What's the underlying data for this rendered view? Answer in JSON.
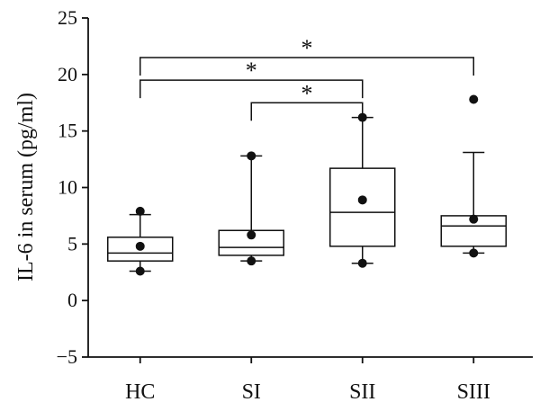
{
  "chart_data": {
    "type": "box",
    "ylabel": "IL-6 in serum (pg/ml)",
    "ylim": [
      -5,
      25
    ],
    "yticks": [
      -5,
      0,
      5,
      10,
      15,
      20,
      25
    ],
    "categories": [
      "HC",
      "SI",
      "SII",
      "SIII"
    ],
    "boxes": [
      {
        "category": "HC",
        "whisker_low": 2.6,
        "q1": 3.5,
        "median": 4.2,
        "q3": 5.6,
        "whisker_high": 7.6,
        "mean": 4.8,
        "min": 2.6,
        "max": 7.9
      },
      {
        "category": "SI",
        "whisker_low": 3.5,
        "q1": 4.0,
        "median": 4.7,
        "q3": 6.2,
        "whisker_high": 12.8,
        "mean": 5.8,
        "min": 3.5,
        "max": 12.8
      },
      {
        "category": "SII",
        "whisker_low": 3.3,
        "q1": 4.8,
        "median": 7.8,
        "q3": 11.7,
        "whisker_high": 16.2,
        "mean": 8.9,
        "min": 3.3,
        "max": 16.2
      },
      {
        "category": "SIII",
        "whisker_low": 4.2,
        "q1": 4.8,
        "median": 6.6,
        "q3": 7.5,
        "whisker_high": 13.1,
        "mean": 7.2,
        "min": 4.2,
        "max": 17.8
      }
    ],
    "significance": [
      {
        "from": "HC",
        "to": "SIII",
        "y": 21.5,
        "label": "*"
      },
      {
        "from": "HC",
        "to": "SII",
        "y": 19.5,
        "label": "*"
      },
      {
        "from": "SI",
        "to": "SII",
        "y": 17.5,
        "label": "*"
      }
    ]
  }
}
